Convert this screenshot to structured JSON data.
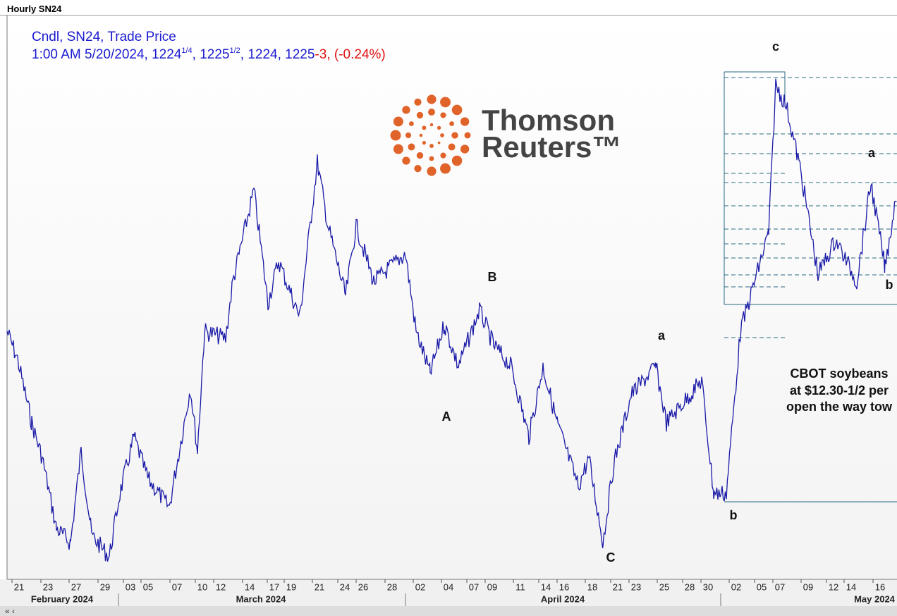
{
  "header": {
    "title": "Hourly SN24"
  },
  "legend": {
    "line1": "Cndl, SN24, Trade Price",
    "quote": {
      "prefix": "1:00 AM 5/20/2024, 1224",
      "frac1": "1/4",
      "mid": ", 1225",
      "frac2": "1/2",
      "rest": ", 1224, 1225",
      "change": "-3, (-0.24%)"
    }
  },
  "logo": {
    "line1": "Thomson",
    "line2": "Reuters™"
  },
  "annotations": [
    {
      "label": "c"
    },
    {
      "label": "a"
    },
    {
      "label": "b"
    },
    {
      "label": "B"
    },
    {
      "label": "a"
    },
    {
      "label": "A"
    },
    {
      "label": "C"
    },
    {
      "label": "b"
    }
  ],
  "note": {
    "lines": [
      "CBOT soybeans",
      "at $12.30-1/2 per",
      "open the way tow"
    ]
  },
  "x_axis": {
    "days": [
      "21",
      "23",
      "27",
      "29",
      "03",
      "05",
      "07",
      "10",
      "12",
      "14",
      "17",
      "19",
      "21",
      "24",
      "26",
      "28",
      "02",
      "04",
      "07",
      "09",
      "11",
      "14",
      "16",
      "18",
      "21",
      "23",
      "25",
      "28",
      "30",
      "02",
      "05",
      "07",
      "09",
      "12",
      "14",
      "16"
    ],
    "months": [
      "February 2024",
      "March 2024",
      "April 2024",
      "May 2024"
    ]
  }
}
